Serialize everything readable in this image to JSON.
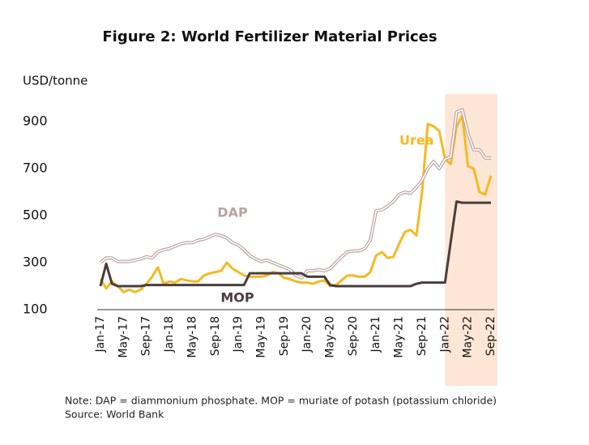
{
  "chart_data": {
    "type": "line",
    "title": "Figure 2: World Fertilizer Material Prices",
    "y_label": "USD/tonne",
    "notes": [
      "Note: DAP = diammonium phosphate. MOP = muriate of potash (potassium chloride)",
      "Source: World Bank"
    ],
    "categories": [
      "Jan-17",
      null,
      null,
      null,
      "May-17",
      null,
      null,
      null,
      "Sep-17",
      null,
      null,
      null,
      "Jan-18",
      null,
      null,
      null,
      "May-18",
      null,
      null,
      null,
      "Sep-18",
      null,
      null,
      null,
      "Jan-19",
      null,
      null,
      null,
      "May-19",
      null,
      null,
      null,
      "Sep-19",
      null,
      null,
      null,
      "Jan-20",
      null,
      null,
      null,
      "May-20",
      null,
      null,
      null,
      "Sep-20",
      null,
      null,
      null,
      "Jan-21",
      null,
      null,
      null,
      "May-21",
      null,
      null,
      null,
      "Sep-21",
      null,
      null,
      null,
      "Jan-22",
      null,
      null,
      null,
      "May-22",
      null,
      null,
      null,
      "Sep-22"
    ],
    "series": [
      {
        "name": "Urea",
        "color": "#f5b921",
        "values": [
          230,
          190,
          220,
          200,
          175,
          185,
          175,
          185,
          210,
          240,
          280,
          210,
          220,
          215,
          230,
          225,
          220,
          220,
          245,
          255,
          260,
          265,
          300,
          275,
          260,
          245,
          240,
          240,
          240,
          245,
          260,
          255,
          235,
          230,
          220,
          215,
          215,
          210,
          220,
          225,
          200,
          205,
          225,
          245,
          245,
          240,
          240,
          260,
          330,
          345,
          320,
          325,
          380,
          430,
          440,
          415,
          600,
          890,
          880,
          860,
          740,
          720,
          880,
          925,
          710,
          700,
          600,
          590,
          670
        ]
      },
      {
        "name": "DAP",
        "color": "#b9a3a0",
        "values": [
          300,
          320,
          320,
          305,
          305,
          305,
          310,
          315,
          325,
          320,
          345,
          355,
          360,
          370,
          380,
          385,
          385,
          395,
          400,
          410,
          420,
          415,
          405,
          385,
          375,
          355,
          330,
          315,
          305,
          310,
          300,
          290,
          280,
          270,
          245,
          235,
          265,
          265,
          270,
          265,
          275,
          300,
          325,
          345,
          350,
          350,
          360,
          395,
          520,
          525,
          540,
          560,
          590,
          600,
          595,
          620,
          650,
          700,
          730,
          700,
          740,
          750,
          940,
          950,
          850,
          780,
          780,
          745,
          745
        ]
      },
      {
        "name": "MOP",
        "color": "#4a3d3d",
        "values": [
          200,
          295,
          210,
          200,
          200,
          200,
          200,
          200,
          205,
          205,
          205,
          205,
          205,
          205,
          205,
          205,
          205,
          205,
          205,
          205,
          205,
          205,
          205,
          205,
          205,
          205,
          255,
          255,
          255,
          255,
          255,
          255,
          255,
          255,
          255,
          255,
          240,
          240,
          240,
          240,
          205,
          200,
          200,
          200,
          200,
          200,
          200,
          200,
          200,
          200,
          200,
          200,
          200,
          200,
          200,
          210,
          215,
          215,
          215,
          215,
          215,
          390,
          560,
          555,
          555,
          555,
          555,
          555,
          555
        ]
      }
    ],
    "ylim": [
      100,
      1000
    ],
    "yticks": [
      100,
      300,
      500,
      700,
      900
    ]
  }
}
